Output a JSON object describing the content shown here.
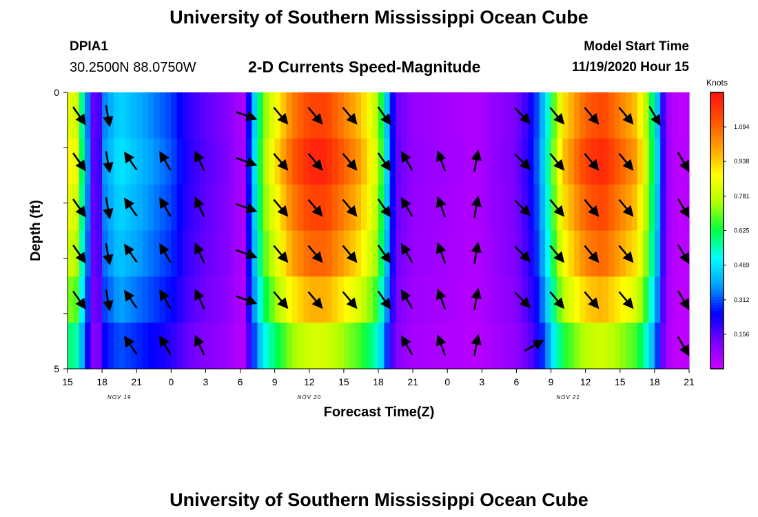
{
  "header": {
    "title_top": "University of Southern Mississippi Ocean Cube",
    "title_bottom": "University of Southern Mississippi Ocean Cube",
    "station": "DPIA1",
    "coordinates": "30.2500N 88.0750W",
    "subtitle": "2-D Currents Speed-Magnitude",
    "model_start_label": "Model Start Time",
    "model_start_value": "11/19/2020 Hour 15"
  },
  "chart_data": {
    "type": "heatmap",
    "title": "2-D Currents Speed-Magnitude",
    "xlabel": "Forecast Time(Z)",
    "ylabel": "Depth (ft)",
    "x_tick_labels": [
      "15",
      "18",
      "21",
      "0",
      "3",
      "6",
      "9",
      "12",
      "15",
      "18",
      "21",
      "0",
      "3",
      "6",
      "9",
      "12",
      "15",
      "18",
      "21"
    ],
    "x_hours": [
      0,
      3,
      6,
      9,
      12,
      15,
      18,
      21,
      24,
      27,
      30,
      33,
      36,
      39,
      42,
      45,
      48,
      51,
      54
    ],
    "date_labels": [
      {
        "text": "NOV 19",
        "hour": 4.5
      },
      {
        "text": "NOV 20",
        "hour": 21
      },
      {
        "text": "NOV 21",
        "hour": 43.5
      }
    ],
    "y_range": [
      0,
      5
    ],
    "y_tick_labels": [
      "0",
      "5"
    ],
    "colorbar": {
      "unit": "Knots",
      "min": 0.0,
      "max": 1.25,
      "ticks": [
        "1.094",
        "0.938",
        "0.781",
        "0.625",
        "0.469",
        "0.312",
        "0.156"
      ],
      "tick_values": [
        1.094,
        0.938,
        0.781,
        0.625,
        0.469,
        0.312,
        0.156
      ],
      "colors": [
        "#cc00ff",
        "#7700ff",
        "#0000ff",
        "#00a0ff",
        "#00ffff",
        "#00ff40",
        "#b0ff00",
        "#ffff00",
        "#ffa000",
        "#ff5000",
        "#ff1010"
      ]
    },
    "speed_profile": [
      [
        0,
        0.85
      ],
      [
        0.8,
        0.8
      ],
      [
        1.5,
        0.45
      ],
      [
        2.2,
        0.15
      ],
      [
        2.8,
        0.18
      ],
      [
        3.2,
        0.35
      ],
      [
        4.5,
        0.45
      ],
      [
        6,
        0.4
      ],
      [
        7.5,
        0.35
      ],
      [
        9,
        0.3
      ],
      [
        10.5,
        0.2
      ],
      [
        12,
        0.15
      ],
      [
        13.5,
        0.12
      ],
      [
        14.5,
        0.08
      ],
      [
        15.2,
        0.03
      ],
      [
        16,
        0.35
      ],
      [
        17,
        0.7
      ],
      [
        18,
        0.85
      ],
      [
        19.5,
        1.05
      ],
      [
        21,
        1.15
      ],
      [
        22.5,
        1.15
      ],
      [
        24,
        1.05
      ],
      [
        25.5,
        0.95
      ],
      [
        27,
        0.75
      ],
      [
        27.8,
        0.4
      ],
      [
        28.5,
        0.15
      ],
      [
        30,
        0.08
      ],
      [
        33,
        0.06
      ],
      [
        35.5,
        0.04
      ],
      [
        37,
        0.08
      ],
      [
        39,
        0.12
      ],
      [
        40.5,
        0.25
      ],
      [
        41.5,
        0.45
      ],
      [
        42.3,
        0.7
      ],
      [
        43,
        0.9
      ],
      [
        45,
        1.1
      ],
      [
        46.5,
        1.15
      ],
      [
        48,
        1.05
      ],
      [
        49.5,
        0.95
      ],
      [
        50.5,
        0.7
      ],
      [
        51.3,
        0.4
      ],
      [
        52,
        0.08
      ],
      [
        53,
        0.02
      ],
      [
        54,
        0.03
      ]
    ],
    "depth_factor": [
      1.0,
      1.05,
      1.0,
      0.95,
      0.85,
      0.7
    ],
    "current_arrows": [
      {
        "hour": 1,
        "dir": 145,
        "rows": [
          0,
          1,
          2,
          3,
          4
        ]
      },
      {
        "hour": 3.5,
        "dir": 170,
        "rows": [
          0,
          1,
          2,
          3,
          4
        ]
      },
      {
        "hour": 5.5,
        "dir": 325,
        "rows": [
          1,
          2,
          3,
          4,
          5
        ]
      },
      {
        "hour": 8.5,
        "dir": 330,
        "rows": [
          1,
          2,
          3,
          4,
          5
        ]
      },
      {
        "hour": 11.5,
        "dir": 335,
        "rows": [
          1,
          2,
          3,
          4,
          5
        ]
      },
      {
        "hour": 15.5,
        "dir": 110,
        "rows": [
          0,
          1,
          2,
          3,
          4
        ]
      },
      {
        "hour": 18.5,
        "dir": 140,
        "rows": [
          0,
          1,
          2,
          3,
          4
        ]
      },
      {
        "hour": 21.5,
        "dir": 140,
        "rows": [
          0,
          1,
          2,
          3,
          4
        ]
      },
      {
        "hour": 24.5,
        "dir": 140,
        "rows": [
          0,
          1,
          2,
          3,
          4
        ]
      },
      {
        "hour": 27.5,
        "dir": 145,
        "rows": [
          0,
          1,
          2,
          3,
          4
        ]
      },
      {
        "hour": 29.5,
        "dir": 330,
        "rows": [
          1,
          2,
          3,
          4,
          5
        ]
      },
      {
        "hour": 32.5,
        "dir": 340,
        "rows": [
          1,
          2,
          3,
          4,
          5
        ]
      },
      {
        "hour": 35.5,
        "dir": 10,
        "rows": [
          1,
          2,
          3,
          4,
          5
        ]
      },
      {
        "hour": 39.5,
        "dir": 135,
        "rows": [
          0,
          1,
          2,
          3,
          4
        ]
      },
      {
        "hour": 40.5,
        "dir": 60,
        "rows": [
          5
        ]
      },
      {
        "hour": 42.5,
        "dir": 140,
        "rows": [
          0,
          1,
          2,
          3,
          4
        ]
      },
      {
        "hour": 45.5,
        "dir": 140,
        "rows": [
          0,
          1,
          2,
          3,
          4
        ]
      },
      {
        "hour": 48.5,
        "dir": 140,
        "rows": [
          0,
          1,
          2,
          3,
          4
        ]
      },
      {
        "hour": 51,
        "dir": 150,
        "rows": [
          0
        ]
      },
      {
        "hour": 53.5,
        "dir": 150,
        "rows": [
          1,
          2,
          3,
          4,
          5
        ]
      }
    ]
  }
}
